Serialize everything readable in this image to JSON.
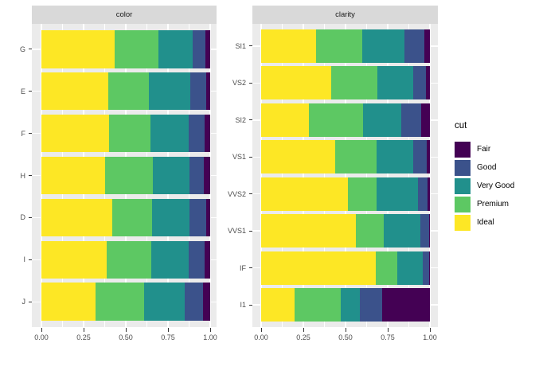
{
  "figure": {
    "colors": {
      "background": "#FFFFFF",
      "panel_bg": "#EBEBEB",
      "strip_bg": "#D9D9D9",
      "grid": "#FFFFFF",
      "axis_text": "#4D4D4D",
      "tick": "#333333",
      "strip_text": "#1A1A1A",
      "legend_text": "#000000"
    }
  },
  "legend": {
    "title": "cut",
    "entries": [
      {
        "label": "Fair",
        "color": "#440154"
      },
      {
        "label": "Good",
        "color": "#3B528B"
      },
      {
        "label": "Very Good",
        "color": "#21908C"
      },
      {
        "label": "Premium",
        "color": "#5DC863"
      },
      {
        "label": "Ideal",
        "color": "#FDE725"
      }
    ]
  },
  "chart_data": {
    "type": "bar",
    "orientation": "horizontal",
    "position": "fill",
    "title": "",
    "xlabel": "",
    "ylabel": "",
    "xlim": [
      0,
      1
    ],
    "grid": true,
    "legend_position": "right",
    "x_ticks": {
      "labels": [
        "0.00",
        "0.25",
        "0.50",
        "0.75",
        "1.00"
      ],
      "values": [
        0,
        0.25,
        0.5,
        0.75,
        1
      ],
      "minor": [
        0.125,
        0.375,
        0.625,
        0.875
      ]
    },
    "stack_order": [
      "Ideal",
      "Premium",
      "Very Good",
      "Good",
      "Fair"
    ],
    "facets": [
      {
        "label": "color",
        "categories": [
          "G",
          "E",
          "F",
          "H",
          "D",
          "I",
          "J"
        ],
        "rows": [
          {
            "category": "G",
            "values": [
              0.4325,
              0.2589,
              0.2036,
              0.0771,
              0.0278
            ]
          },
          {
            "category": "E",
            "values": [
              0.3984,
              0.2385,
              0.245,
              0.0952,
              0.0229
            ]
          },
          {
            "category": "F",
            "values": [
              0.401,
              0.2443,
              0.2268,
              0.0953,
              0.0327
            ]
          },
          {
            "category": "H",
            "values": [
              0.3751,
              0.2842,
              0.2197,
              0.0845,
              0.0365
            ]
          },
          {
            "category": "D",
            "values": [
              0.4183,
              0.2366,
              0.2233,
              0.0977,
              0.0241
            ]
          },
          {
            "category": "I",
            "values": [
              0.386,
              0.2634,
              0.2221,
              0.0963,
              0.0323
            ]
          },
          {
            "category": "J",
            "values": [
              0.3191,
              0.2877,
              0.2415,
              0.1093,
              0.0424
            ]
          }
        ]
      },
      {
        "label": "clarity",
        "categories": [
          "SI1",
          "VS2",
          "SI2",
          "VS1",
          "VVS2",
          "VVS1",
          "IF",
          "I1"
        ],
        "rows": [
          {
            "category": "SI1",
            "values": [
              0.3277,
              0.2736,
              0.248,
              0.1194,
              0.0312
            ]
          },
          {
            "category": "VS2",
            "values": [
              0.4137,
              0.2739,
              0.2114,
              0.0798,
              0.0213
            ]
          },
          {
            "category": "SI2",
            "values": [
              0.2826,
              0.3208,
              0.2284,
              0.1176,
              0.0507
            ]
          },
          {
            "category": "VS1",
            "values": [
              0.4392,
              0.2434,
              0.2172,
              0.0793,
              0.0208
            ]
          },
          {
            "category": "VVS2",
            "values": [
              0.5144,
              0.1717,
              0.2438,
              0.0565,
              0.0136
            ]
          },
          {
            "category": "VVS1",
            "values": [
              0.5601,
              0.1685,
              0.2159,
              0.0509,
              0.0047
            ]
          },
          {
            "category": "IF",
            "values": [
              0.6771,
              0.1285,
              0.1497,
              0.0397,
              0.005
            ]
          },
          {
            "category": "I1",
            "values": [
              0.197,
              0.2767,
              0.1134,
              0.1296,
              0.2834
            ]
          }
        ]
      }
    ]
  }
}
